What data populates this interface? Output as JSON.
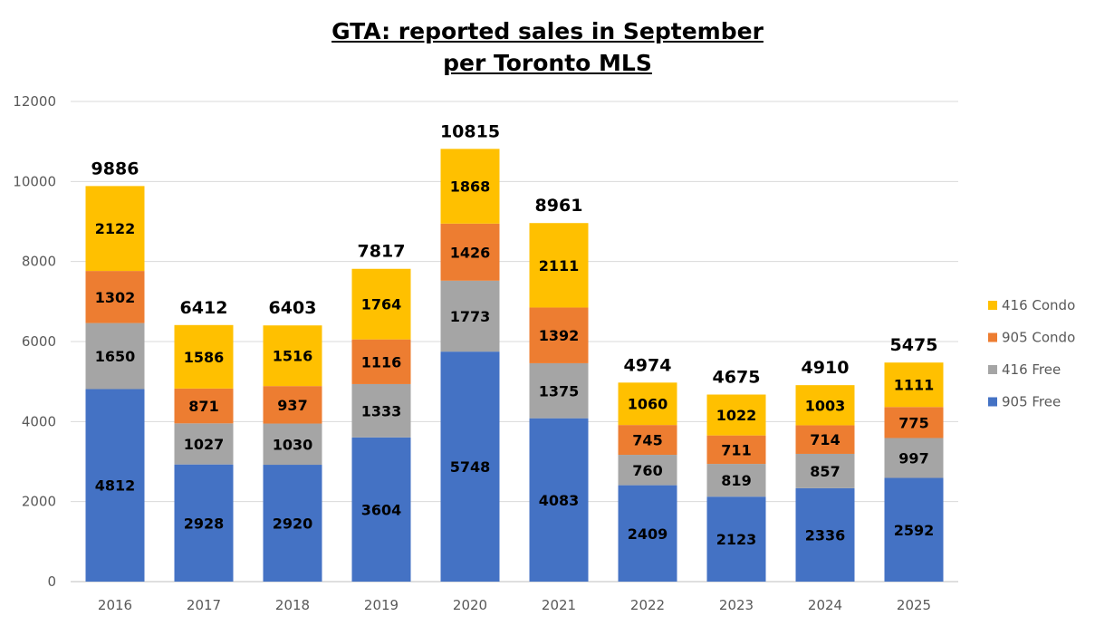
{
  "chart_data": {
    "type": "bar",
    "stacked": true,
    "title": [
      "GTA: reported sales in September",
      "per Toronto MLS"
    ],
    "categories": [
      "2016",
      "2017",
      "2018",
      "2019",
      "2020",
      "2021",
      "2022",
      "2023",
      "2024",
      "2025"
    ],
    "series": [
      {
        "name": "905 Free",
        "color": "#4472C4",
        "values": [
          4812,
          2928,
          2920,
          3604,
          5748,
          4083,
          2409,
          2123,
          2336,
          2592
        ]
      },
      {
        "name": "416 Free",
        "color": "#A5A5A5",
        "values": [
          1650,
          1027,
          1030,
          1333,
          1773,
          1375,
          760,
          819,
          857,
          997
        ]
      },
      {
        "name": "905 Condo",
        "color": "#ED7D31",
        "values": [
          1302,
          871,
          937,
          1116,
          1426,
          1392,
          745,
          711,
          714,
          775
        ]
      },
      {
        "name": "416 Condo",
        "color": "#FFC000",
        "values": [
          2122,
          1586,
          1516,
          1764,
          1868,
          2111,
          1060,
          1022,
          1003,
          1111
        ]
      }
    ],
    "totals": [
      9886,
      6412,
      6403,
      7817,
      10815,
      8961,
      4974,
      4675,
      4910,
      5475
    ],
    "ylim": [
      0,
      12000
    ],
    "yticks": [
      0,
      2000,
      4000,
      6000,
      8000,
      10000,
      12000
    ],
    "xlabel": "",
    "ylabel": "",
    "legend_position": "right",
    "legend_order": [
      "416 Condo",
      "905 Condo",
      "416 Free",
      "905 Free"
    ],
    "grid": true
  }
}
